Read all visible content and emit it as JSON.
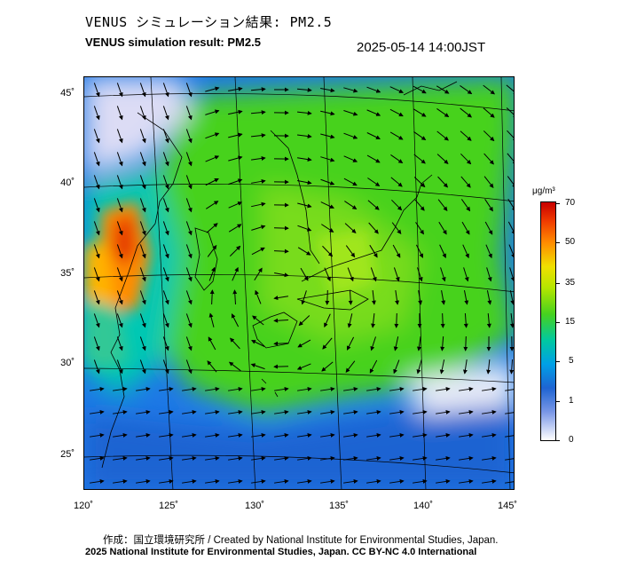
{
  "header": {
    "title_jp": "VENUS シミュレーション結果: PM2.5",
    "title_en": "VENUS simulation result: PM2.5",
    "timestamp": "2025-05-14 14:00JST"
  },
  "map": {
    "lat_labels": [
      "45˚",
      "40˚",
      "35˚",
      "30˚",
      "25˚"
    ],
    "lon_labels": [
      "120˚",
      "125˚",
      "130˚",
      "135˚",
      "140˚",
      "145˚"
    ]
  },
  "colorbar": {
    "unit": "μg/m³",
    "ticks": [
      "70",
      "50",
      "35",
      "15",
      "5",
      "1",
      "0"
    ],
    "colors": [
      "#c80000",
      "#ff8c00",
      "#f0e000",
      "#46d21e",
      "#00c8a0",
      "#1e64d2",
      "#ffffff"
    ]
  },
  "footer": {
    "credit_line_1": "作成：国立環境研究所 / Created by National Institute for Environmental Studies, Japan.",
    "credit_line_2": "2025 National Institute for Environmental Studies, Japan. CC BY-NC 4.0 International"
  }
}
